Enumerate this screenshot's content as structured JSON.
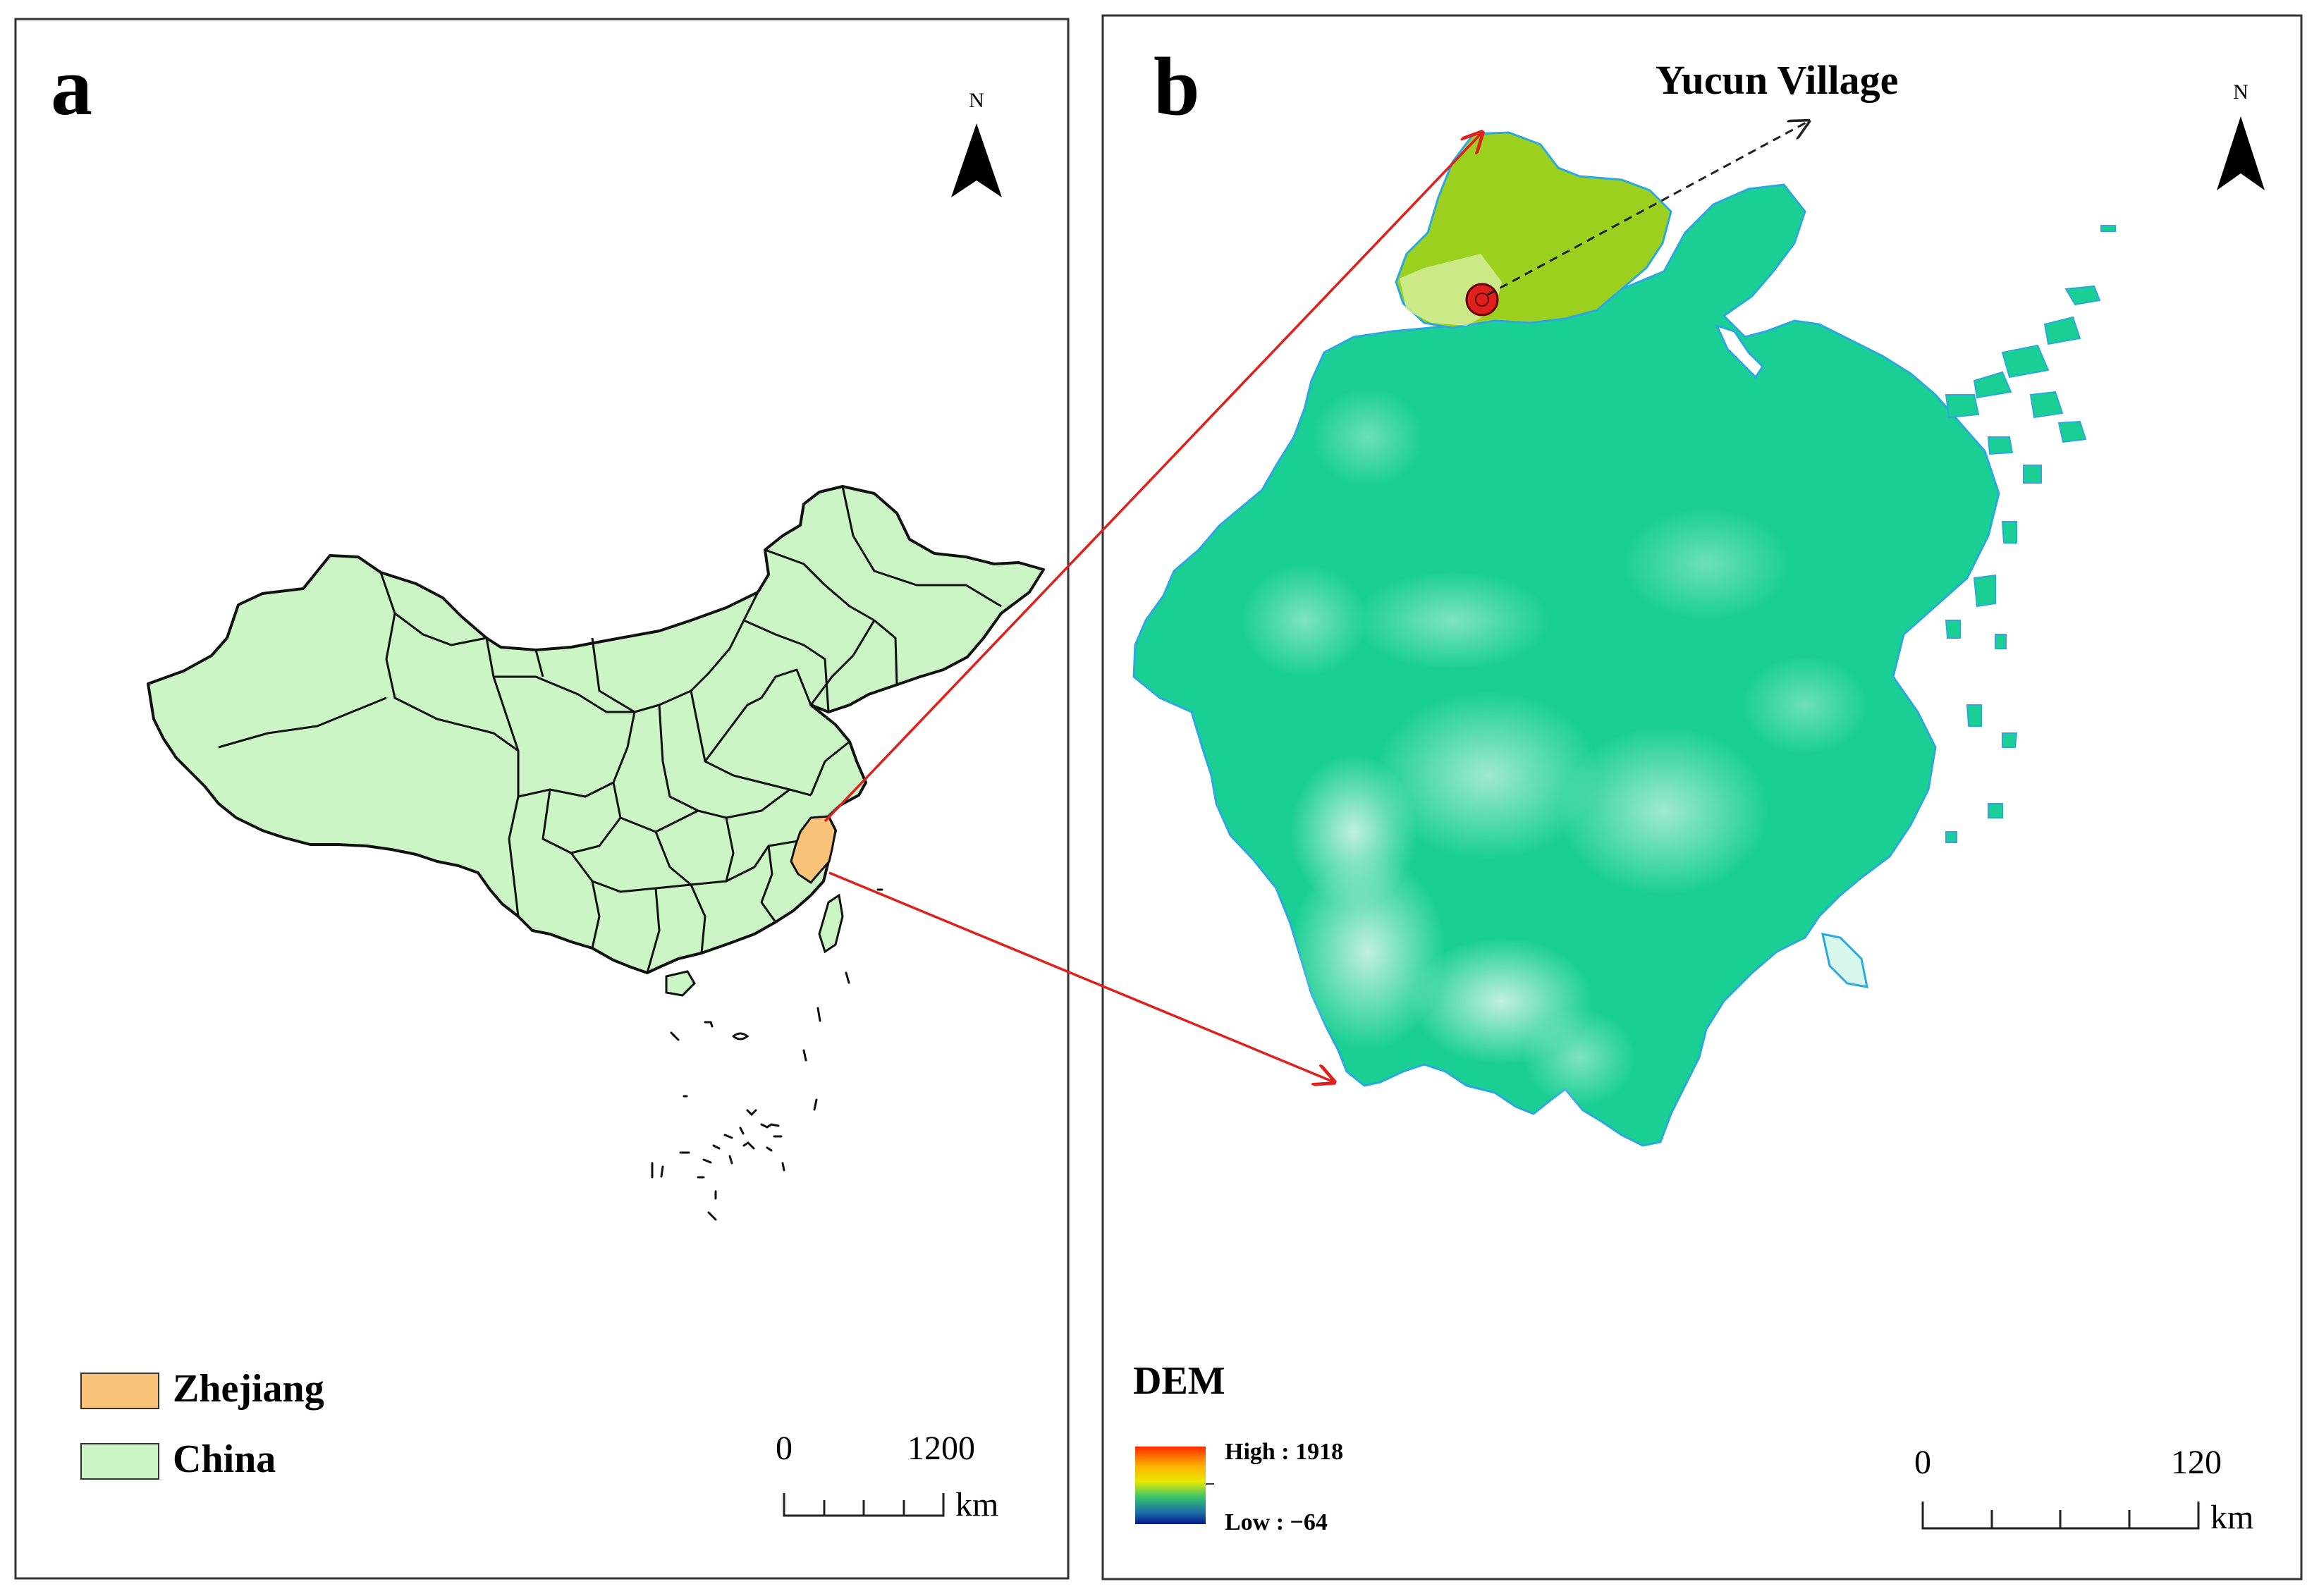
{
  "panel_a": {
    "label": "a",
    "north_label": "N",
    "legend": [
      {
        "label": "Zhejiang",
        "color": "#f9c47a"
      },
      {
        "label": "China",
        "color": "#ccf5c5"
      }
    ],
    "scale": {
      "start": "0",
      "end": "1200",
      "unit": "km"
    }
  },
  "panel_b": {
    "label": "b",
    "north_label": "N",
    "village_label": "Yucun Village",
    "dem": {
      "title": "DEM",
      "high_label": "High : 1918",
      "low_label": "Low : −64",
      "colors": [
        "#ff2a00",
        "#ffb000",
        "#e8e800",
        "#39c46a",
        "#1a6fa8",
        "#0a1a8a"
      ]
    },
    "scale": {
      "start": "0",
      "end": "120",
      "unit": "km"
    }
  },
  "colors": {
    "china_fill": "#ccf5c5",
    "zhejiang_fill": "#f9c47a",
    "dem_main": "#19cf93",
    "dem_high": "#b7ecd8",
    "yucun_region": "#9bd11e",
    "connector": "#e0201c"
  }
}
